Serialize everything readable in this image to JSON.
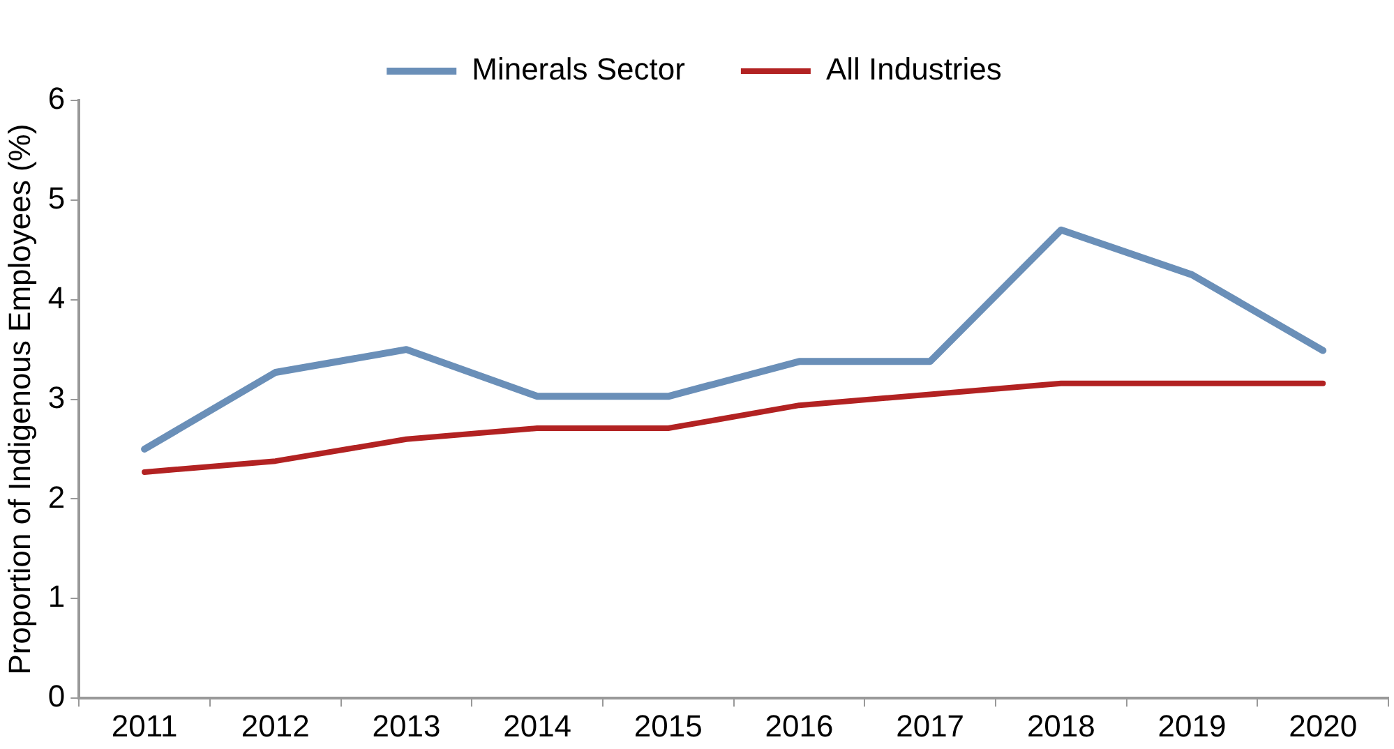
{
  "chart_data": {
    "type": "line",
    "ylabel": "Proportion of Indigenous Employees (%)",
    "categories": [
      "2011",
      "2012",
      "2013",
      "2014",
      "2015",
      "2016",
      "2017",
      "2018",
      "2019",
      "2020"
    ],
    "series": [
      {
        "name": "Minerals Sector",
        "color": "#6a8fb8",
        "values": [
          2.5,
          3.27,
          3.5,
          3.03,
          3.03,
          3.38,
          3.38,
          4.7,
          4.25,
          3.49
        ]
      },
      {
        "name": "All Industries",
        "color": "#b22222",
        "values": [
          2.27,
          2.38,
          2.6,
          2.71,
          2.71,
          2.94,
          3.05,
          3.16,
          3.16,
          3.16
        ]
      }
    ],
    "ylim": [
      0,
      6
    ],
    "yticks": [
      0,
      1,
      2,
      3,
      4,
      5,
      6
    ],
    "grid": false,
    "legend": "top",
    "marker": "none",
    "line_style": "solid"
  }
}
